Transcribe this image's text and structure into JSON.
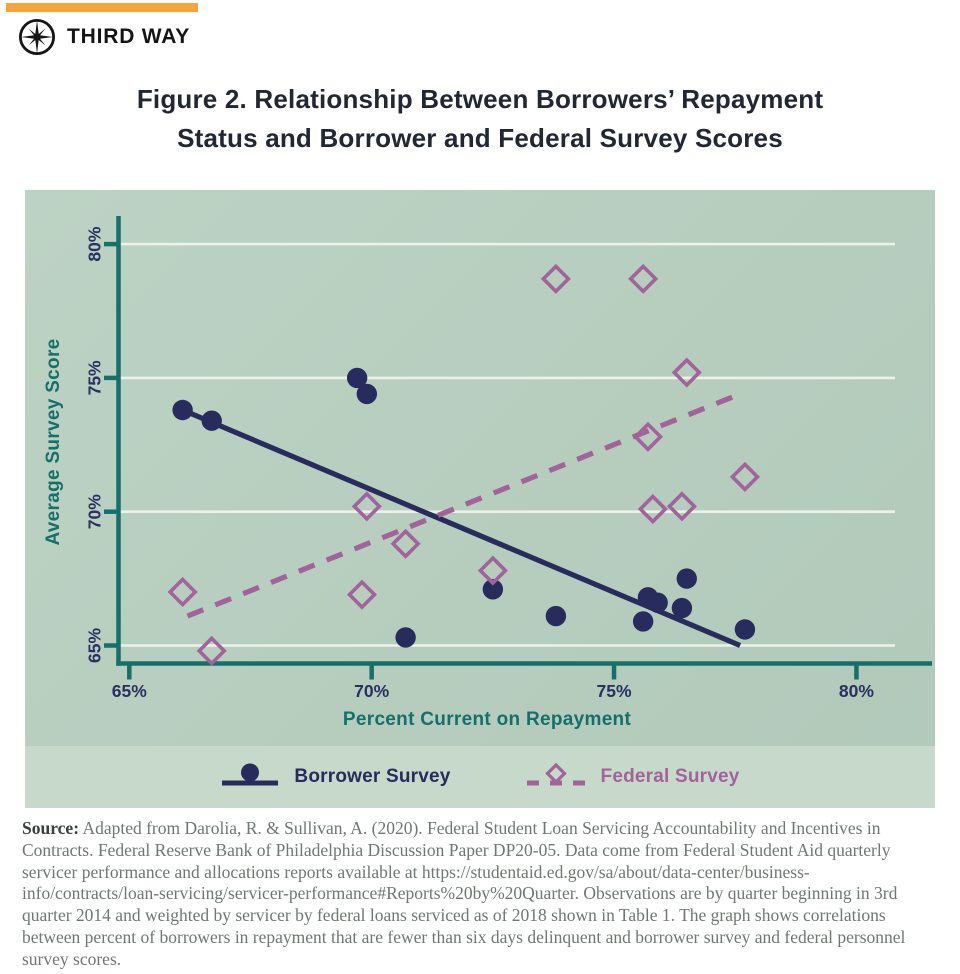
{
  "brand": {
    "name": "THIRD WAY",
    "logo_icon": "compass-star-icon"
  },
  "title": {
    "line1": "Figure 2. Relationship Between Borrowers’ Repayment",
    "line2": "Status and Borrower and Federal Survey Scores"
  },
  "chart_data": {
    "type": "scatter",
    "title": "Figure 2. Relationship Between Borrowers’ Repayment Status and Borrower and Federal Survey Scores",
    "xlabel": "Percent Current on Repayment",
    "ylabel": "Average Survey Score",
    "xlim": [
      65,
      80
    ],
    "ylim": [
      65,
      80
    ],
    "x_ticks": [
      65,
      70,
      75,
      80
    ],
    "y_ticks": [
      65,
      70,
      75,
      80
    ],
    "tick_suffix": "%",
    "grid": "horizontal-white-gridlines",
    "legend_position": "bottom",
    "series": [
      {
        "name": "Borrower Survey",
        "marker": "circle-filled",
        "color": "#272C5C",
        "points": [
          [
            66.1,
            73.8
          ],
          [
            66.7,
            73.4
          ],
          [
            69.7,
            75.0
          ],
          [
            69.9,
            74.4
          ],
          [
            70.7,
            65.3
          ],
          [
            72.5,
            67.1
          ],
          [
            73.8,
            66.1
          ],
          [
            75.6,
            65.9
          ],
          [
            75.7,
            66.8
          ],
          [
            75.9,
            66.6
          ],
          [
            76.4,
            66.4
          ],
          [
            76.5,
            67.5
          ],
          [
            77.7,
            65.6
          ]
        ],
        "trend": {
          "style": "solid",
          "from": [
            66.1,
            73.8
          ],
          "to": [
            77.6,
            65.0
          ]
        }
      },
      {
        "name": "Federal Survey",
        "marker": "diamond-open",
        "color": "#A2639B",
        "points": [
          [
            66.1,
            67.0
          ],
          [
            66.7,
            64.8
          ],
          [
            69.8,
            66.9
          ],
          [
            69.9,
            70.2
          ],
          [
            70.7,
            68.8
          ],
          [
            72.5,
            67.8
          ],
          [
            73.8,
            78.7
          ],
          [
            75.6,
            78.7
          ],
          [
            75.7,
            72.8
          ],
          [
            75.8,
            70.1
          ],
          [
            76.4,
            70.2
          ],
          [
            76.5,
            75.2
          ],
          [
            77.7,
            71.3
          ]
        ],
        "trend": {
          "style": "dashed",
          "from": [
            66.2,
            66.1
          ],
          "to": [
            77.6,
            74.4
          ]
        }
      }
    ]
  },
  "source": {
    "label": "Source:",
    "text": " Adapted from Darolia, R. & Sullivan, A. (2020). Federal Student Loan Servicing Accountability and Incentives in Contracts. Federal Reserve Bank of Philadelphia Discussion Paper DP20-05. Data come from Federal Student Aid quarterly servicer performance and allocations reports available at https://studentaid.ed.gov/sa/about/data-center/business-info/contracts/loan-servicing/servicer-performance#Reports%20by%20Quarter. Observations are by quarter beginning in 3rd quarter 2014 and weighted by servicer by federal loans serviced as of 2018 shown in Table 1. The graph shows correlations between percent of borrowers in repayment that are fewer than six days delinquent and borrower survey and federal personnel survey scores."
  },
  "colors": {
    "accent_bar": "#F9A43B",
    "navy": "#272C5C",
    "tick_text": "#2A3060",
    "teal": "#16706A",
    "purple": "#A2639B",
    "chart_bg": "#B8CFC0",
    "legend_strip_bg": "#C7D9CA",
    "gridline": "#ECF2EA",
    "source_text": "#6F7771",
    "title_text": "#212733"
  }
}
